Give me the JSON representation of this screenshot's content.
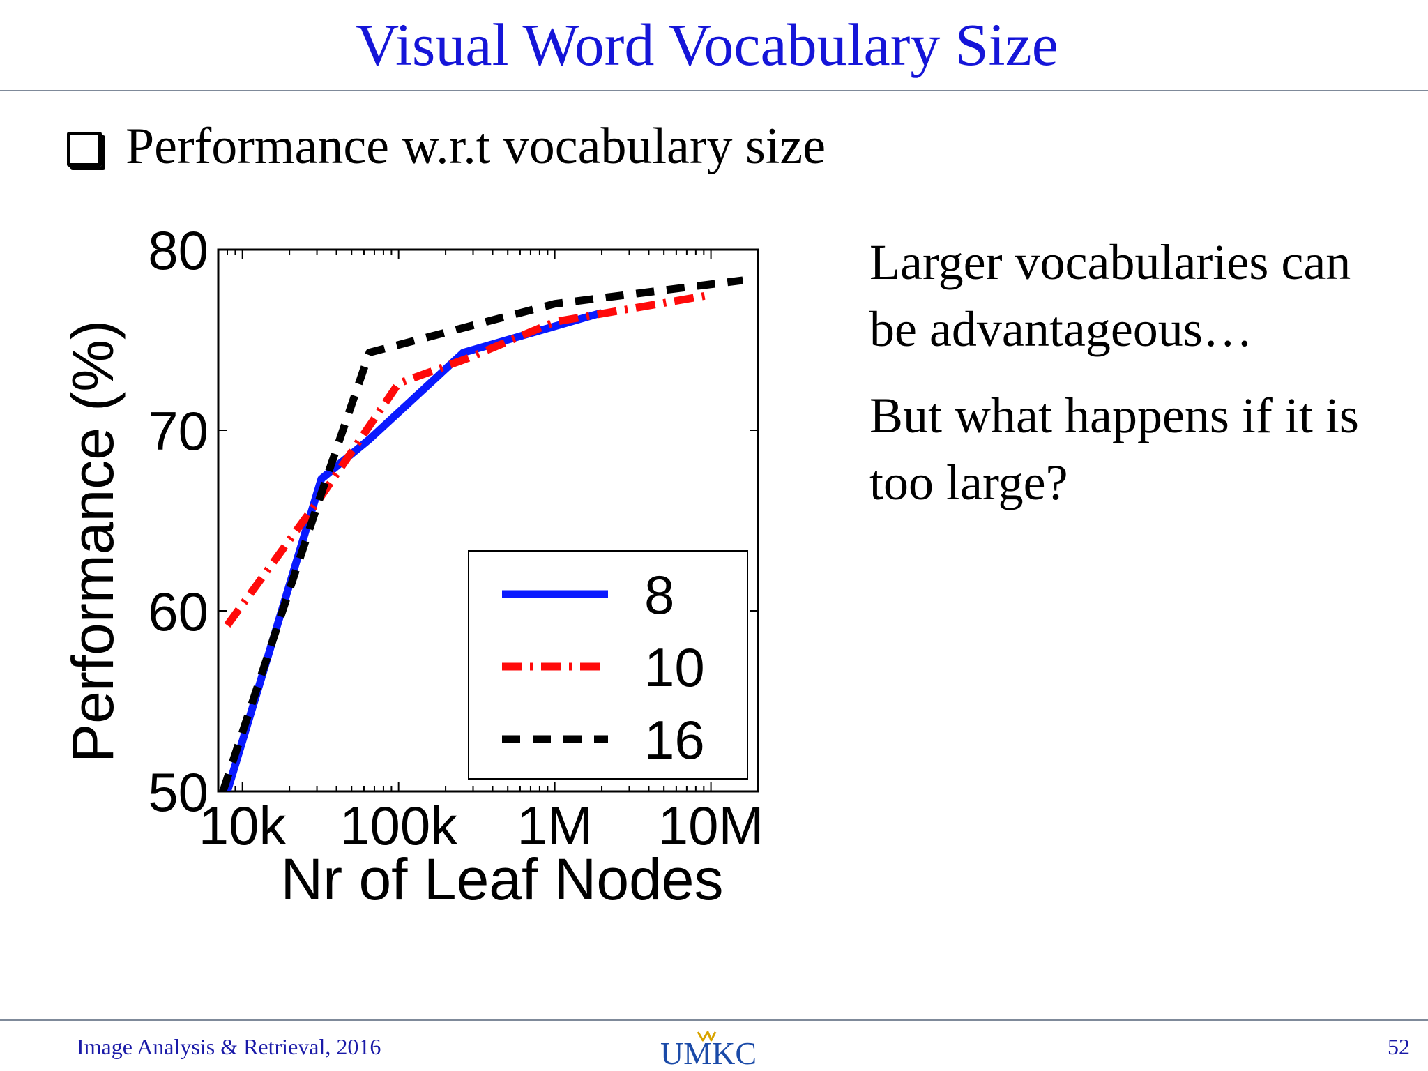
{
  "slide": {
    "title": "Visual Word  Vocabulary Size",
    "bullet": "Performance w.r.t vocabulary size",
    "side_paragraphs": [
      "Larger vocabularies can be advantageous…",
      "But what happens if it is too large?"
    ]
  },
  "footer": {
    "course": "Image Analysis & Retrieval, 2016",
    "logo_text": "UMKC",
    "page_number": "52"
  },
  "chart_data": {
    "type": "line",
    "title": "",
    "xlabel": "Nr of Leaf Nodes",
    "ylabel": "Performance (%)",
    "xscale": "log",
    "xlim": [
      7000,
      20000000
    ],
    "ylim": [
      50,
      80
    ],
    "x_ticks": [
      10000,
      100000,
      1000000,
      10000000
    ],
    "x_tick_labels": [
      "10k",
      "100k",
      "1M",
      "10M"
    ],
    "y_ticks": [
      50,
      60,
      70,
      80
    ],
    "y_tick_labels": [
      "50",
      "60",
      "70",
      "80"
    ],
    "legend_placement": "bottom-right",
    "grid": false,
    "series": [
      {
        "name": "8",
        "color": "#0a1aff",
        "style": "solid",
        "points": [
          [
            8000,
            50
          ],
          [
            32000,
            67.3
          ],
          [
            65000,
            69.5
          ],
          [
            260000,
            74.3
          ],
          [
            2000000,
            76.5
          ]
        ]
      },
      {
        "name": "10",
        "color": "#ff0a0a",
        "style": "dash-dot",
        "points": [
          [
            8000,
            59.2
          ],
          [
            30000,
            66.0
          ],
          [
            100000,
            72.6
          ],
          [
            280000,
            74.0
          ],
          [
            1000000,
            76.0
          ],
          [
            10000000,
            77.5
          ]
        ]
      },
      {
        "name": "16",
        "color": "#000000",
        "style": "dashed",
        "points": [
          [
            7500,
            50
          ],
          [
            32000,
            66.5
          ],
          [
            65000,
            74.3
          ],
          [
            1000000,
            77.0
          ],
          [
            16000000,
            78.3
          ]
        ]
      }
    ]
  }
}
